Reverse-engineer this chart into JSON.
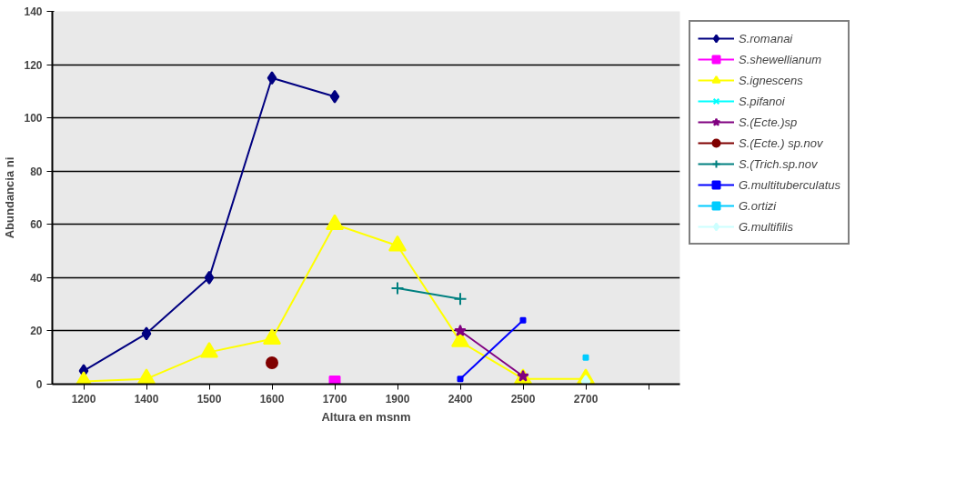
{
  "chart_data": {
    "type": "line",
    "xlabel": "Altura en msnm",
    "ylabel": "Abundancia ni",
    "categories": [
      "1200",
      "1400",
      "1500",
      "1600",
      "1700",
      "1900",
      "2400",
      "2500",
      "2700",
      null
    ],
    "ylim": [
      0,
      140
    ],
    "yticks": [
      0,
      20,
      40,
      60,
      80,
      100,
      120,
      140
    ],
    "grid": "y",
    "legend": "right",
    "series": [
      {
        "name": "S.romanai",
        "color": "#000080",
        "marker": "diamond",
        "values": [
          5,
          19,
          40,
          115,
          108,
          null,
          null,
          null,
          null,
          null
        ]
      },
      {
        "name": "S.shewellianum",
        "color": "#ff00ff",
        "marker": "square",
        "values": [
          null,
          null,
          null,
          null,
          1,
          null,
          null,
          null,
          null,
          null
        ]
      },
      {
        "name": "S.ignescens",
        "color": "#ffff00",
        "marker": "triangle",
        "values": [
          1,
          2,
          12,
          17,
          60,
          52,
          16,
          2,
          2,
          null
        ]
      },
      {
        "name": "S.pifanoi",
        "color": "#00ffff",
        "marker": "x",
        "values": [
          null,
          null,
          null,
          null,
          null,
          null,
          null,
          null,
          null,
          null
        ]
      },
      {
        "name": "S.(Ecte.)sp",
        "color": "#800080",
        "marker": "star",
        "values": [
          null,
          null,
          null,
          null,
          null,
          null,
          20,
          3,
          null,
          null
        ]
      },
      {
        "name": "S.(Ecte.) sp.nov",
        "color": "#800000",
        "marker": "circle",
        "values": [
          null,
          null,
          null,
          8,
          null,
          null,
          null,
          null,
          null,
          null
        ]
      },
      {
        "name": "S.(Trich.sp.nov",
        "color": "#008080",
        "marker": "cross",
        "values": [
          null,
          null,
          null,
          null,
          null,
          36,
          32,
          null,
          null,
          null
        ]
      },
      {
        "name": "G.multituberculatus",
        "color": "#0000ff",
        "marker": "square",
        "values": [
          null,
          null,
          null,
          null,
          null,
          null,
          2,
          24,
          null,
          null
        ]
      },
      {
        "name": "G.ortizi",
        "color": "#00ccff",
        "marker": "square",
        "values": [
          null,
          null,
          null,
          null,
          null,
          null,
          null,
          null,
          10,
          null
        ]
      },
      {
        "name": "G.multifilis",
        "color": "#ccffff",
        "marker": "diamond",
        "values": [
          null,
          null,
          null,
          null,
          null,
          null,
          null,
          null,
          1,
          null
        ]
      }
    ]
  }
}
